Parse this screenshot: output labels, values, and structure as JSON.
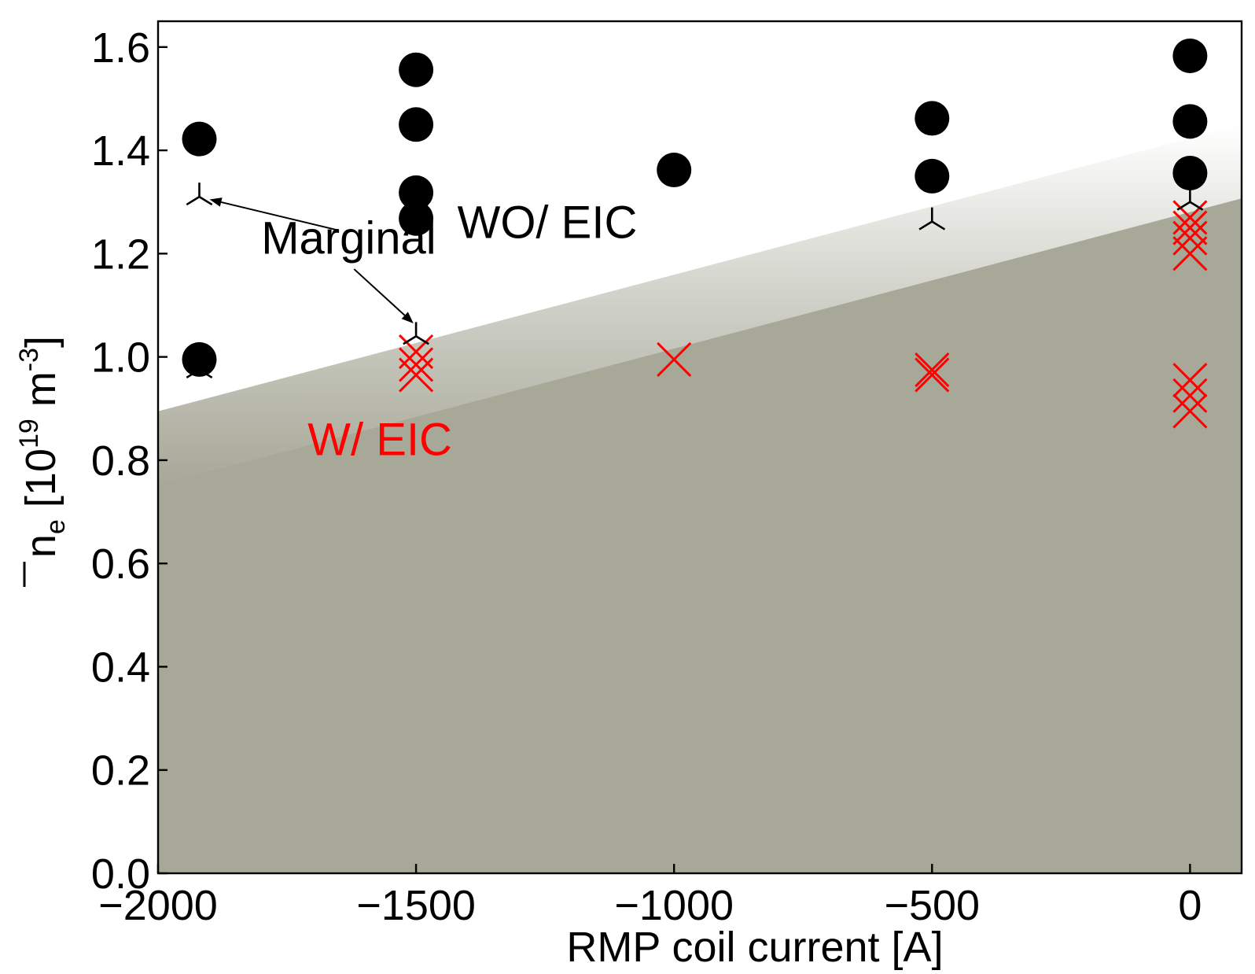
{
  "chart_data": {
    "type": "scatter",
    "xlabel": "RMP coil current [A]",
    "ylabel": {
      "main": "n",
      "sub": "e",
      "bracket_open": " [10",
      "sup1": "19",
      "unit": " m",
      "sup2": "-3",
      "bracket_close": "]"
    },
    "xlim": [
      -2000,
      100
    ],
    "ylim": [
      0.0,
      1.65
    ],
    "x_ticks": [
      -2000,
      -1500,
      -1000,
      -500,
      0
    ],
    "x_tick_labels": [
      "−2000",
      "−1500",
      "−1000",
      "−500",
      "0"
    ],
    "y_ticks": [
      0.0,
      0.2,
      0.4,
      0.6,
      0.8,
      1.0,
      1.2,
      1.4,
      1.6
    ],
    "y_tick_labels": [
      "0.0",
      "0.2",
      "0.4",
      "0.6",
      "0.8",
      "1.0",
      "1.2",
      "1.4",
      "1.6"
    ],
    "grid": false,
    "legend": "none",
    "boundary": {
      "description_color": "#a7a898",
      "x": [
        -2000,
        80
      ],
      "y": [
        0.75,
        1.3
      ]
    },
    "series": [
      {
        "marker": "circle",
        "color": "#000000",
        "points": [
          [
            -1920,
            1.422
          ],
          [
            -1920,
            0.995
          ],
          [
            -1500,
            1.556
          ],
          [
            -1500,
            1.45
          ],
          [
            -1500,
            1.318
          ],
          [
            -1500,
            1.268
          ],
          [
            -1000,
            1.362
          ],
          [
            -500,
            1.462
          ],
          [
            -500,
            1.35
          ],
          [
            0,
            1.583
          ],
          [
            0,
            1.456
          ],
          [
            0,
            1.356
          ]
        ]
      },
      {
        "marker": "x",
        "color": "#ff0000",
        "points": [
          [
            -1500,
            1.01
          ],
          [
            -1500,
            0.985
          ],
          [
            -1500,
            0.965
          ],
          [
            -1000,
            0.995
          ],
          [
            -500,
            0.975
          ],
          [
            -500,
            0.965
          ],
          [
            0,
            1.27
          ],
          [
            0,
            1.25
          ],
          [
            0,
            1.23
          ],
          [
            0,
            1.2
          ],
          [
            0,
            0.955
          ],
          [
            0,
            0.925
          ],
          [
            0,
            0.895
          ]
        ]
      },
      {
        "marker": "tri_up",
        "color": "#000000",
        "points": [
          [
            -1920,
            1.31
          ],
          [
            -1500,
            1.04
          ],
          [
            -500,
            1.262
          ],
          [
            0,
            1.3
          ],
          [
            -1920,
            0.975
          ]
        ]
      }
    ],
    "annotations": [
      {
        "text": "Marginal",
        "color": "#000000",
        "x": -1800,
        "y": 1.2
      },
      {
        "text": "WO/ EIC",
        "color": "#000000",
        "x": -1420,
        "y": 1.23
      },
      {
        "text": "W/ EIC",
        "color": "#ff0000",
        "x": -1710,
        "y": 0.81
      }
    ],
    "arrows": [
      {
        "from": [
          -1650,
          1.245
        ],
        "to": [
          -1900,
          1.305
        ]
      },
      {
        "from": [
          -1620,
          1.17
        ],
        "to": [
          -1505,
          1.065
        ]
      }
    ]
  }
}
